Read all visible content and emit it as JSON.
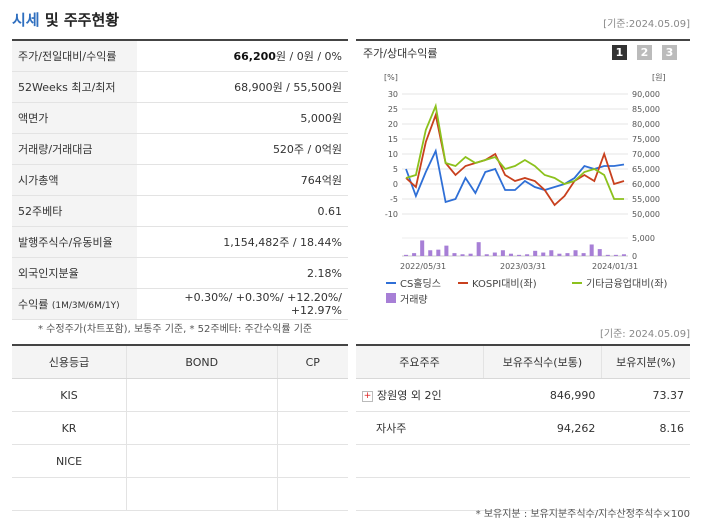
{
  "header": {
    "title_main": "시세",
    "title_rest": "및 주주현황",
    "base_date": "[기준:2024.05.09]"
  },
  "quote_rows": [
    {
      "label": "주가/전일대비/수익률",
      "value_bold": "66,200",
      "value_rest": "원 / 0원 / 0%"
    },
    {
      "label": "52Weeks 최고/최저",
      "value": "68,900원 / 55,500원"
    },
    {
      "label": "액면가",
      "value": "5,000원"
    },
    {
      "label": "거래량/거래대금",
      "value": "520주 / 0억원"
    },
    {
      "label": "시가총액",
      "value": "764억원"
    },
    {
      "label": "52주베타",
      "value": "0.61"
    },
    {
      "label": "발행주식수/유동비율",
      "value": "1,154,482주 / 18.44%"
    },
    {
      "label": "외국인지분율",
      "value": "2.18%"
    }
  ],
  "return_row": {
    "label": "수익률",
    "sub_label": "(1M/3M/6M/1Y)",
    "values": "+0.30%/ +0.30%/ +12.20%/ +12.97%"
  },
  "quote_note": "* 수정주가(차트포함), 보통주 기준, * 52주베타: 주간수익률 기준",
  "chart": {
    "title": "주가/상대수익률",
    "tabs": [
      "1",
      "2",
      "3"
    ],
    "active_tab": "1",
    "left_unit": "[%]",
    "right_unit": "[원]",
    "legend": [
      {
        "name": "CS홀딩스",
        "color": "#2f6fd6",
        "kind": "line"
      },
      {
        "name": "KOSPI대비(좌)",
        "color": "#c8401e",
        "kind": "line"
      },
      {
        "name": "기타금융업대비(좌)",
        "color": "#8cc11d",
        "kind": "line"
      },
      {
        "name": "거래량",
        "color": "#a77fd6",
        "kind": "bar"
      }
    ]
  },
  "chart_data": {
    "type": "line",
    "x_labels": [
      "2022/05/31",
      "2023/03/31",
      "2024/01/31"
    ],
    "left_ticks": [
      "30",
      "25",
      "20",
      "15",
      "10",
      "5",
      "0",
      "-5",
      "-10"
    ],
    "right_ticks": [
      "90,000",
      "85,000",
      "80,000",
      "75,000",
      "70,000",
      "65,000",
      "60,000",
      "55,000",
      "50,000"
    ],
    "volume_ticks": [
      "5,000",
      "0"
    ],
    "ylim_left": [
      -10,
      30
    ],
    "ylim_right": [
      50000,
      90000
    ],
    "series": [
      {
        "name": "CS홀딩스",
        "color": "#2f6fd6",
        "values": [
          5,
          -4,
          4,
          11,
          -6,
          -5,
          2,
          -3,
          4,
          5,
          -2,
          -2,
          1,
          -1,
          -2,
          -1,
          0,
          2,
          6,
          5,
          6,
          6,
          6.5
        ]
      },
      {
        "name": "KOSPI대비(좌)",
        "color": "#c8401e",
        "values": [
          2,
          -1,
          14,
          23,
          7,
          3,
          6,
          7,
          8,
          10,
          3,
          1,
          2,
          1,
          -2,
          -7,
          -4,
          1,
          3,
          1,
          10,
          0,
          1
        ]
      },
      {
        "name": "기타금융업대비(좌)",
        "color": "#8cc11d",
        "values": [
          2,
          3,
          18,
          26,
          7,
          6,
          9,
          7,
          8,
          9,
          5,
          6,
          8,
          6,
          3,
          2,
          0,
          1,
          4,
          5,
          3,
          -5,
          -5
        ]
      }
    ],
    "volume": [
      0.2,
      0.5,
      2.7,
      1.0,
      1.1,
      1.8,
      0.5,
      0.3,
      0.4,
      2.4,
      0.3,
      0.6,
      1.0,
      0.4,
      0.2,
      0.3,
      0.9,
      0.6,
      1.0,
      0.4,
      0.5,
      1.0,
      0.5,
      2.0,
      1.2,
      0.2,
      0.2,
      0.3
    ]
  },
  "holder_base_date": "[기준: 2024.05.09]",
  "credit": {
    "headers": [
      "신용등급",
      "BOND",
      "CP"
    ],
    "rows": [
      {
        "agency": "KIS",
        "bond": "",
        "cp": ""
      },
      {
        "agency": "KR",
        "bond": "",
        "cp": ""
      },
      {
        "agency": "NICE",
        "bond": "",
        "cp": ""
      },
      {
        "agency": "",
        "bond": "",
        "cp": ""
      }
    ]
  },
  "holders": {
    "headers": [
      "주요주주",
      "보유주식수(보통)",
      "보유지분(%)"
    ],
    "rows": [
      {
        "name": "장원영 외 2인",
        "shares": "846,990",
        "pct": "73.37",
        "expandable": true
      },
      {
        "name": "자사주",
        "shares": "94,262",
        "pct": "8.16",
        "expandable": false
      }
    ],
    "note": "* 보유지분 : 보유지분주식수/지수산정주식수×100"
  }
}
